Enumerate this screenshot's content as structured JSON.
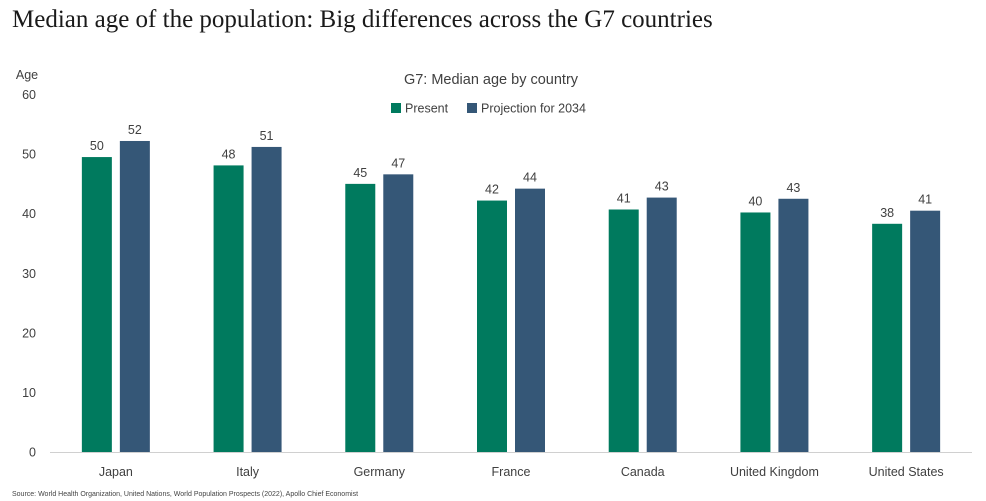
{
  "headline": "Median age of the population: Big differences across the G7 countries",
  "source": "Source: World Health Organization, United Nations, World Population Prospects (2022), Apollo Chief Economist",
  "colors": {
    "present": "#007a5e",
    "projection": "#355777"
  },
  "chart_data": {
    "type": "bar",
    "title": "G7: Median age by country",
    "xlabel": "",
    "ylabel": "Age",
    "ylim": [
      0,
      60
    ],
    "yticks": [
      0,
      10,
      20,
      30,
      40,
      50,
      60
    ],
    "grid": false,
    "legend_position": "top-center",
    "categories": [
      "Japan",
      "Italy",
      "Germany",
      "France",
      "Canada",
      "United Kingdom",
      "United States"
    ],
    "series": [
      {
        "name": "Present",
        "values": [
          49.5,
          48.1,
          45.0,
          42.2,
          40.7,
          40.2,
          38.3
        ],
        "labels": [
          "50",
          "48",
          "45",
          "42",
          "41",
          "40",
          "38"
        ]
      },
      {
        "name": "Projection for 2034",
        "values": [
          52.2,
          51.2,
          46.6,
          44.2,
          42.7,
          42.5,
          40.5
        ],
        "labels": [
          "52",
          "51",
          "47",
          "44",
          "43",
          "43",
          "41"
        ]
      }
    ]
  }
}
